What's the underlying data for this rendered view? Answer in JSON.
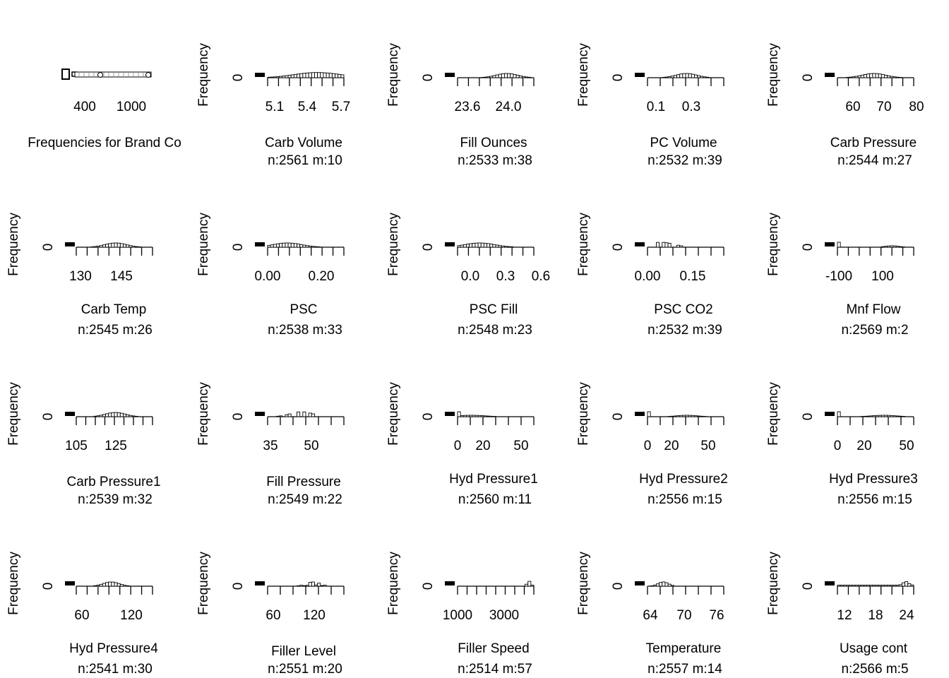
{
  "chart_data": [
    {
      "type": "bar",
      "title": "Frequencies for Brand Co",
      "stats": "",
      "ylabel": "",
      "zero": "",
      "ticks": [
        "400",
        "1000"
      ],
      "nticks": 0,
      "shape": "brand"
    },
    {
      "type": "bar",
      "title": "Carb Volume",
      "stats": "n:2561 m:10",
      "ylabel": "Frequency",
      "zero": "0",
      "ticks": [
        "5.1",
        "5.4",
        "5.7"
      ],
      "nticks": 8,
      "xlim": [
        5.0,
        5.7
      ],
      "center": 5.38,
      "spread": 0.18,
      "shape": "bimodal"
    },
    {
      "type": "bar",
      "title": "Fill Ounces",
      "stats": "n:2533 m:38",
      "ylabel": "Frequency",
      "zero": "0",
      "ticks": [
        "23.6",
        "24.0"
      ],
      "nticks": 8,
      "xlim": [
        23.55,
        24.2
      ],
      "center": 23.97,
      "spread": 0.09,
      "shape": "normal"
    },
    {
      "type": "bar",
      "title": "PC Volume",
      "stats": "n:2532 m:39",
      "ylabel": "Frequency",
      "zero": "0",
      "ticks": [
        "0.1",
        "0.3"
      ],
      "nticks": 7,
      "xlim": [
        0.05,
        0.5
      ],
      "center": 0.28,
      "spread": 0.06,
      "shape": "normal"
    },
    {
      "type": "bar",
      "title": "Carb Pressure",
      "stats": "n:2544 m:27",
      "ylabel": "Frequency",
      "zero": "0",
      "ticks": [
        "60",
        "70",
        "80"
      ],
      "nticks": 8,
      "xlim": [
        57,
        80
      ],
      "center": 68,
      "spread": 3.5,
      "shape": "normal"
    },
    {
      "type": "bar",
      "title": "Carb Temp",
      "stats": "n:2545 m:26",
      "ylabel": "Frequency",
      "zero": "0",
      "ticks": [
        "130",
        "145"
      ],
      "nticks": 8,
      "xlim": [
        126,
        155
      ],
      "center": 141,
      "spread": 4,
      "shape": "normal"
    },
    {
      "type": "bar",
      "title": "PSC",
      "stats": "n:2538 m:33",
      "ylabel": "Frequency",
      "zero": "0",
      "ticks": [
        "0.00",
        "0.20"
      ],
      "nticks": 8,
      "xlim": [
        0.0,
        0.27
      ],
      "center": 0.07,
      "spread": 0.05,
      "shape": "skew"
    },
    {
      "type": "bar",
      "title": "PSC Fill",
      "stats": "n:2548 m:23",
      "ylabel": "Frequency",
      "zero": "0",
      "ticks": [
        "0.0",
        "0.3",
        "0.6"
      ],
      "nticks": 8,
      "xlim": [
        0.0,
        0.62
      ],
      "center": 0.18,
      "spread": 0.12,
      "shape": "skew"
    },
    {
      "type": "bar",
      "title": "PSC CO2",
      "stats": "n:2532 m:39",
      "ylabel": "Frequency",
      "zero": "0",
      "ticks": [
        "0.00",
        "0.15"
      ],
      "nticks": 7,
      "xlim": [
        0.0,
        0.23
      ],
      "center": 0.04,
      "spread": 0.03,
      "shape": "spiky"
    },
    {
      "type": "bar",
      "title": "Mnf Flow",
      "stats": "n:2569 m:2",
      "ylabel": "Frequency",
      "zero": "0",
      "ticks": [
        "-100",
        "100"
      ],
      "nticks": 8,
      "xlim": [
        -120,
        230
      ],
      "center": 130,
      "spread": 30,
      "shape": "mnf"
    },
    {
      "type": "bar",
      "title": "Carb Pressure1",
      "stats": "n:2539 m:32",
      "ylabel": "Frequency",
      "zero": "0",
      "ticks": [
        "105",
        "125"
      ],
      "nticks": 9,
      "xlim": [
        103,
        142
      ],
      "center": 123,
      "spread": 5,
      "shape": "normal"
    },
    {
      "type": "bar",
      "title": "Fill Pressure",
      "stats": "n:2549 m:22",
      "ylabel": "Frequency",
      "zero": "0",
      "ticks": [
        "35",
        "50"
      ],
      "nticks": 7,
      "xlim": [
        34,
        61
      ],
      "center": 46,
      "spread": 3,
      "shape": "spiky"
    },
    {
      "type": "bar",
      "title": "Hyd Pressure1",
      "stats": "n:2560 m:11",
      "ylabel": "Frequency",
      "zero": "0",
      "ticks": [
        "0",
        "20",
        "50"
      ],
      "nticks": 7,
      "xlim": [
        -1,
        58
      ],
      "center": 10,
      "spread": 10,
      "shape": "hyd"
    },
    {
      "type": "bar",
      "title": "Hyd Pressure2",
      "stats": "n:2556 m:15",
      "ylabel": "Frequency",
      "zero": "0",
      "ticks": [
        "0",
        "20",
        "50"
      ],
      "nticks": 7,
      "xlim": [
        -1,
        59
      ],
      "center": 30,
      "spread": 8,
      "shape": "hyd"
    },
    {
      "type": "bar",
      "title": "Hyd Pressure3",
      "stats": "n:2556 m:15",
      "ylabel": "Frequency",
      "zero": "0",
      "ticks": [
        "0",
        "20",
        "50"
      ],
      "nticks": 7,
      "xlim": [
        -1,
        50
      ],
      "center": 30,
      "spread": 8,
      "shape": "hyd"
    },
    {
      "type": "bar",
      "title": "Hyd Pressure4",
      "stats": "n:2541 m:30",
      "ylabel": "Frequency",
      "zero": "0",
      "ticks": [
        "60",
        "120"
      ],
      "nticks": 8,
      "xlim": [
        48,
        155
      ],
      "center": 97,
      "spread": 11,
      "shape": "normal"
    },
    {
      "type": "bar",
      "title": "Filler Level",
      "stats": "n:2551 m:20",
      "ylabel": "Frequency",
      "zero": "0",
      "ticks": [
        "60",
        "120"
      ],
      "nticks": 7,
      "xlim": [
        52,
        162
      ],
      "center": 118,
      "spread": 10,
      "shape": "filler"
    },
    {
      "type": "bar",
      "title": "Filler Speed",
      "stats": "n:2514 m:57",
      "ylabel": "Frequency",
      "zero": "0",
      "ticks": [
        "1000",
        "3000"
      ],
      "nticks": 9,
      "xlim": [
        900,
        4100
      ],
      "center": 3900,
      "spread": 80,
      "shape": "speed"
    },
    {
      "type": "bar",
      "title": "Temperature",
      "stats": "n:2557 m:14",
      "ylabel": "Frequency",
      "zero": "0",
      "ticks": [
        "64",
        "70",
        "76"
      ],
      "nticks": 7,
      "xlim": [
        63,
        76.5
      ],
      "center": 65.8,
      "spread": 0.9,
      "shape": "normal"
    },
    {
      "type": "bar",
      "title": "Usage cont",
      "stats": "n:2566 m:5",
      "ylabel": "Frequency",
      "zero": "0",
      "ticks": [
        "12",
        "18",
        "24"
      ],
      "nticks": 8,
      "xlim": [
        11,
        25.5
      ],
      "center": 24,
      "spread": 0.5,
      "shape": "usage"
    }
  ]
}
